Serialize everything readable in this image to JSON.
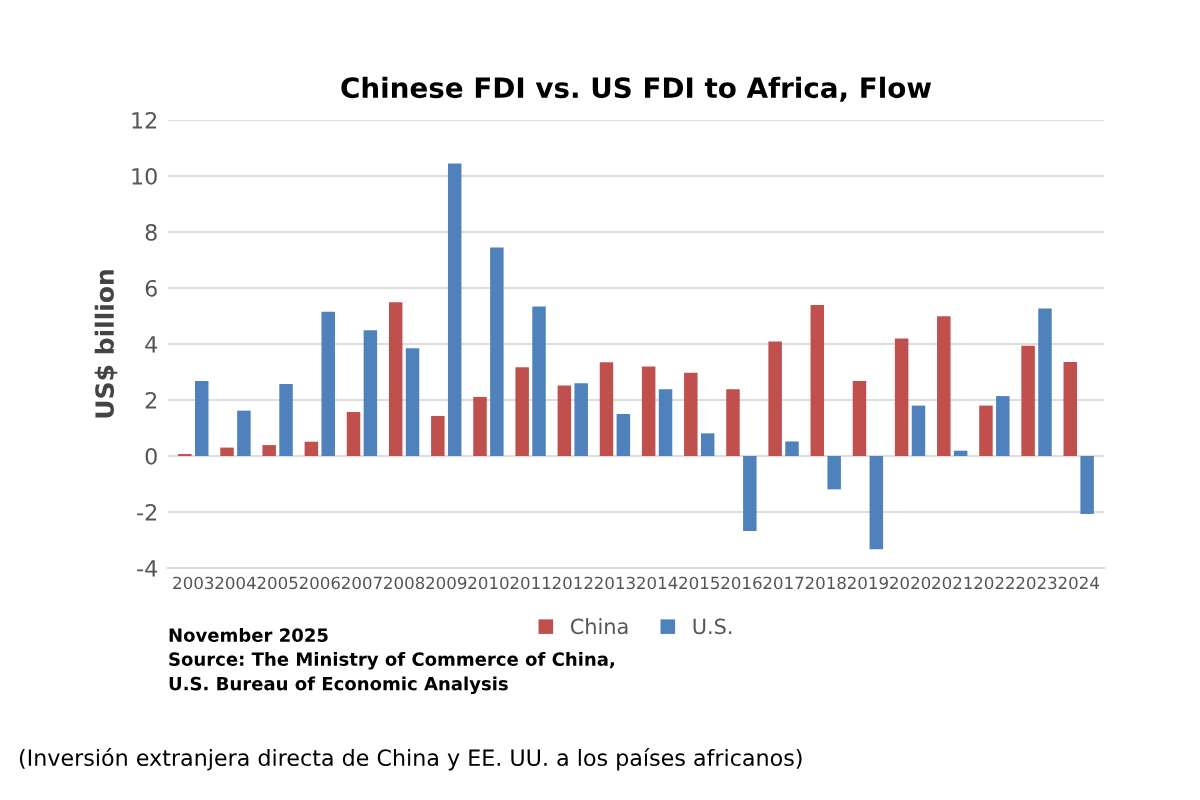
{
  "chart_data": {
    "type": "bar",
    "title": "Chinese FDI vs. US FDI to Africa, Flow",
    "ylabel": "US$ billion",
    "categories": [
      "2003",
      "2004",
      "2005",
      "2006",
      "2007",
      "2008",
      "2009",
      "2010",
      "2011",
      "2012",
      "2013",
      "2014",
      "2015",
      "2016",
      "2017",
      "2018",
      "2019",
      "2020",
      "2021",
      "2022",
      "2023",
      "2024"
    ],
    "series": [
      {
        "name": "China",
        "color": "#c0504d",
        "values": [
          0.07,
          0.3,
          0.39,
          0.51,
          1.57,
          5.49,
          1.43,
          2.11,
          3.17,
          2.52,
          3.35,
          3.2,
          2.97,
          2.38,
          4.09,
          5.39,
          2.68,
          4.2,
          4.99,
          1.8,
          3.94,
          3.36
        ]
      },
      {
        "name": "U.S.",
        "color": "#4f81bd",
        "values": [
          2.68,
          1.62,
          2.57,
          5.15,
          4.49,
          3.85,
          10.45,
          7.45,
          5.34,
          2.6,
          1.5,
          2.38,
          0.81,
          -2.68,
          0.52,
          -1.19,
          -3.33,
          1.8,
          0.19,
          2.14,
          5.27,
          -2.07
        ]
      }
    ],
    "ylim": [
      -4,
      12
    ],
    "yticks": [
      -4,
      -2,
      0,
      2,
      4,
      6,
      8,
      10,
      12
    ],
    "grid": "y",
    "legend": "bottom",
    "annotations": [
      "November 2025",
      "Source: The Ministry of Commerce of China,\nU.S. Bureau of Economic Analysis",
      "(Inversión extranjera directa de China y EE. UU. a los países africanos)"
    ]
  }
}
